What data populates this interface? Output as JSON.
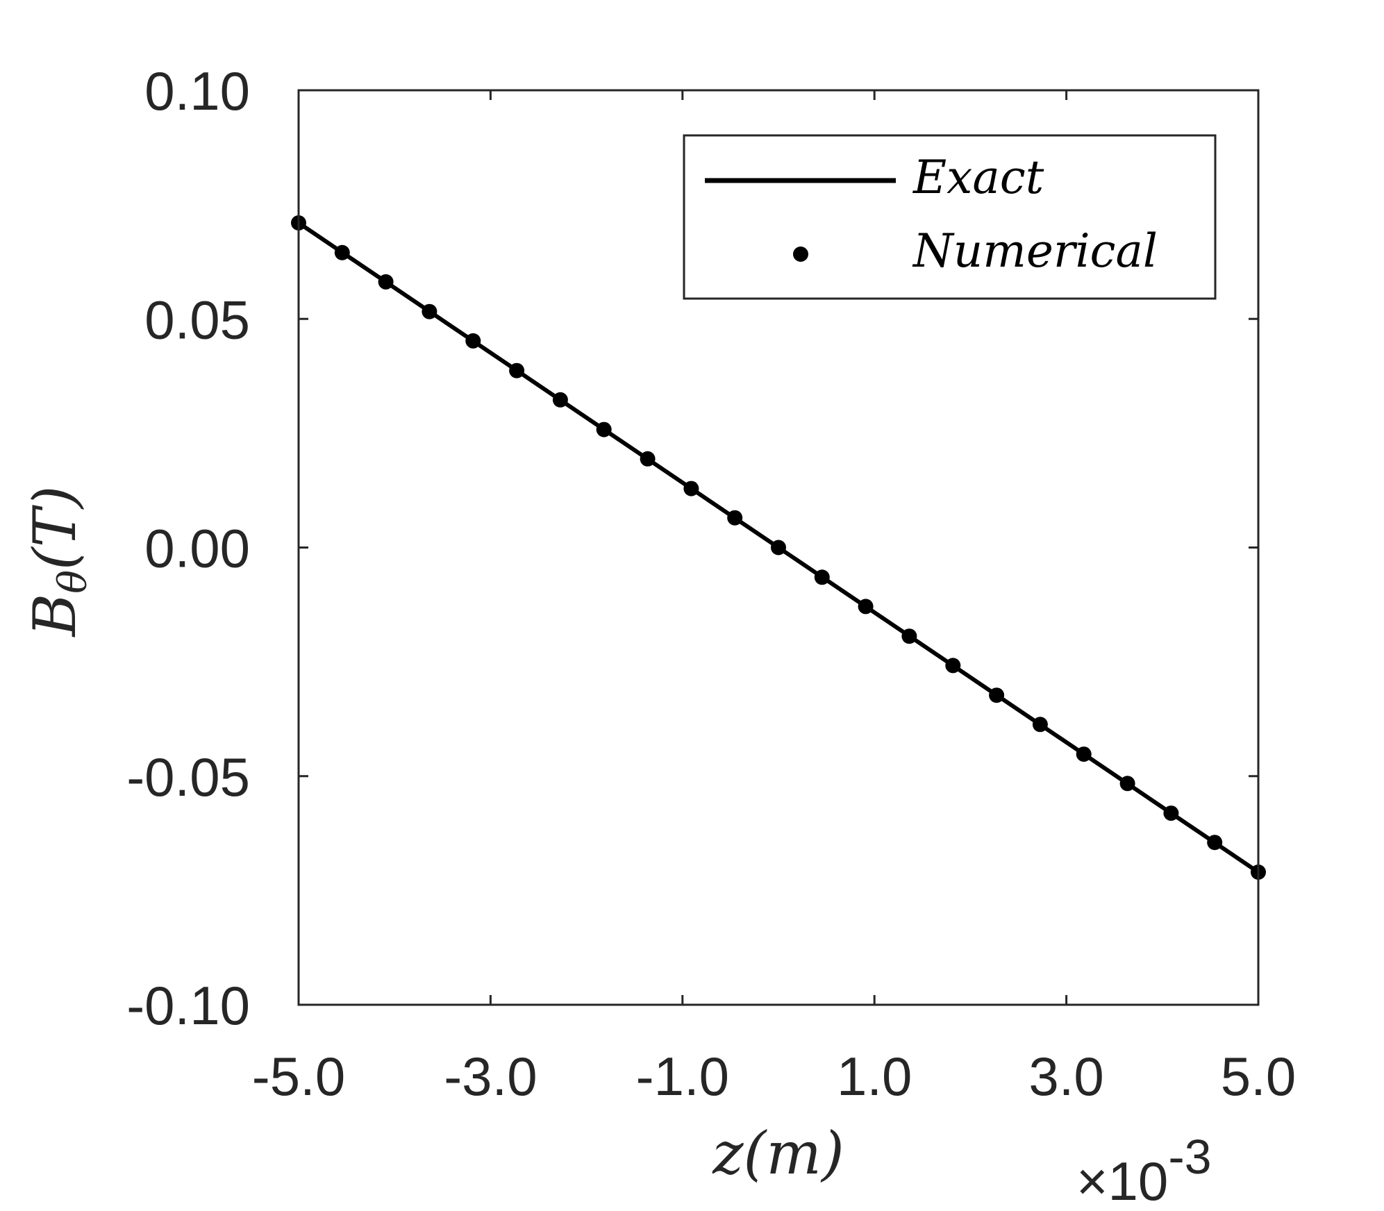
{
  "chart_data": {
    "type": "line",
    "title": "",
    "xlabel": "z(m)",
    "ylabel": "B_θ(T)",
    "ylabel_main": "B",
    "ylabel_sub": "θ",
    "ylabel_unit": "(T)",
    "x_multiplier_label": "×10",
    "x_multiplier_exponent": "-3",
    "xlim": [
      -5.0,
      5.0
    ],
    "ylim": [
      -0.1,
      0.1
    ],
    "xticks": [
      -5.0,
      -3.0,
      -1.0,
      1.0,
      3.0,
      5.0
    ],
    "xtick_labels": [
      "-5.0",
      "-3.0",
      "-1.0",
      "1.0",
      "3.0",
      "5.0"
    ],
    "yticks": [
      0.1,
      0.05,
      0.0,
      -0.05,
      -0.1
    ],
    "ytick_labels": [
      "0.10",
      "0.05",
      "0.00",
      "-0.05",
      "-0.10"
    ],
    "grid": false,
    "legend_position": "top-right",
    "series": [
      {
        "name": "Exact",
        "style": "line",
        "x": [
          -5.0,
          5.0
        ],
        "y": [
          0.071,
          -0.071
        ]
      },
      {
        "name": "Numerical",
        "style": "markers",
        "x": [
          -5.0,
          -4.5455,
          -4.0909,
          -3.6364,
          -3.1818,
          -2.7273,
          -2.2727,
          -1.8182,
          -1.3636,
          -0.9091,
          -0.4545,
          0.0,
          0.4545,
          0.9091,
          1.3636,
          1.8182,
          2.2727,
          2.7273,
          3.1818,
          3.6364,
          4.0909,
          4.5455,
          5.0
        ],
        "y": [
          0.071,
          0.0645,
          0.0581,
          0.0516,
          0.0452,
          0.0387,
          0.0323,
          0.0258,
          0.0194,
          0.0129,
          0.0065,
          0.0,
          -0.0065,
          -0.0129,
          -0.0194,
          -0.0258,
          -0.0323,
          -0.0387,
          -0.0452,
          -0.0516,
          -0.0581,
          -0.0645,
          -0.071
        ]
      }
    ],
    "colors": {
      "axis": "#262626",
      "line": "#000000",
      "marker": "#000000"
    }
  }
}
